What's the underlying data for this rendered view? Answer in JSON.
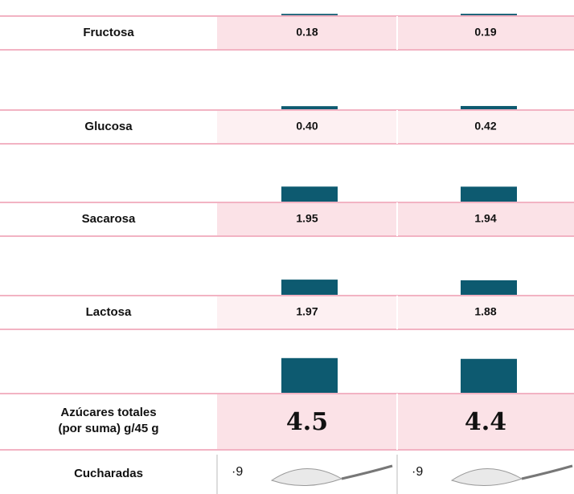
{
  "rows": [
    {
      "label": "Fructosa",
      "values": [
        0.18,
        0.19
      ],
      "value_labels": [
        "0.18",
        "0.19"
      ]
    },
    {
      "label": "Glucosa",
      "values": [
        0.4,
        0.42
      ],
      "value_labels": [
        "0.40",
        "0.42"
      ]
    },
    {
      "label": "Sacarosa",
      "values": [
        1.95,
        1.94
      ],
      "value_labels": [
        "1.95",
        "1.94"
      ]
    },
    {
      "label": "Lactosa",
      "values": [
        1.97,
        1.88
      ],
      "value_labels": [
        "1.97",
        "1.88"
      ]
    }
  ],
  "totals": {
    "label_lines": [
      "Azúcares totales",
      "(por suma) g/45 g"
    ],
    "values": [
      4.5,
      4.4
    ]
  },
  "spoons": {
    "label": "Cucharadas",
    "values": [
      "·9",
      "·9"
    ]
  },
  "bar_color": "#0d5a70"
}
